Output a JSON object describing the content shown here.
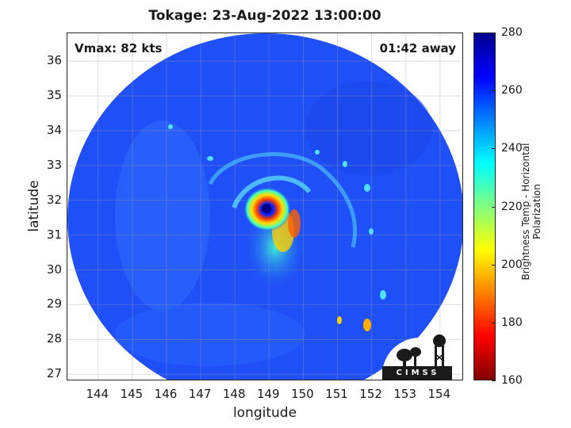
{
  "title": "Tokage: 23-Aug-2022 13:00:00",
  "vmax_label": "Vmax: 82 kts",
  "time_away_label": "01:42 away",
  "axes": {
    "xlabel": "longitude",
    "ylabel": "latitude",
    "x_ticks": [
      "144",
      "145",
      "146",
      "147",
      "148",
      "149",
      "150",
      "151",
      "152",
      "153",
      "154"
    ],
    "y_ticks": [
      "36",
      "35",
      "34",
      "33",
      "32",
      "31",
      "30",
      "29",
      "28",
      "27"
    ],
    "xlim": [
      143.1,
      154.7
    ],
    "ylim": [
      26.8,
      36.8
    ],
    "grid": true
  },
  "colorbar": {
    "label": "Brightness Temp - Horizontal Polarization",
    "ticks": [
      "280",
      "260",
      "240",
      "220",
      "200",
      "180",
      "160"
    ],
    "range": [
      160,
      280
    ],
    "colormap": "jet"
  },
  "storm": {
    "center_lon": 149.0,
    "center_lat": 31.8
  },
  "logo": {
    "text": "CIMSS",
    "name": "cimss-logo"
  }
}
